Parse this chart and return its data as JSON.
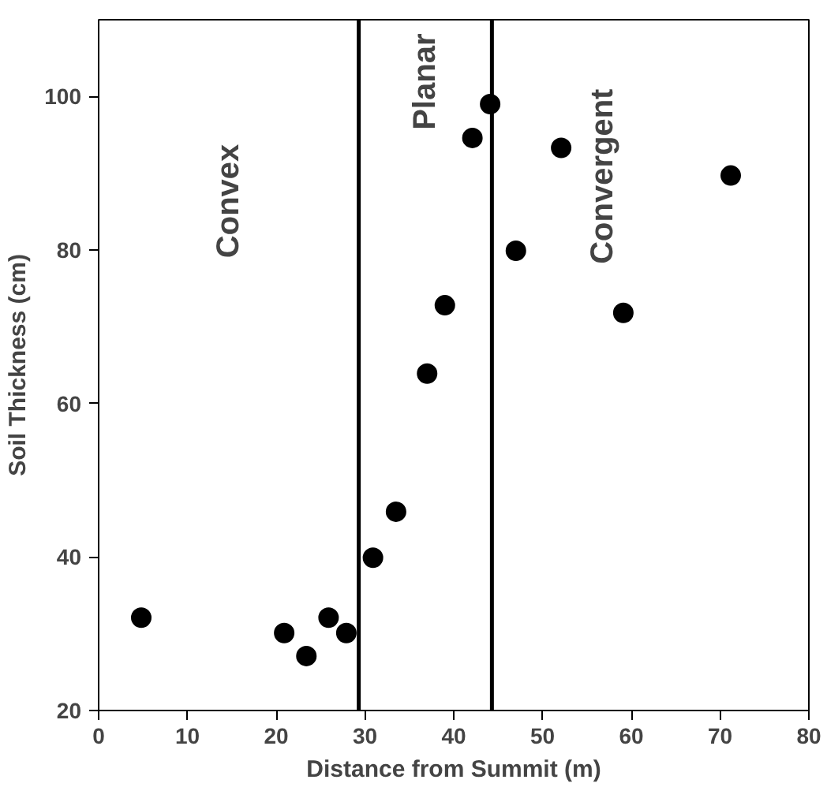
{
  "chart_data": {
    "type": "scatter",
    "xlabel": "Distance from Summit (m)",
    "ylabel": "Soil Thickness (cm)",
    "x": [
      4.8,
      20.9,
      23.4,
      25.9,
      27.9,
      30.9,
      33.5,
      37.0,
      39.0,
      42.1,
      44.1,
      47.0,
      52.1,
      59.1,
      71.2
    ],
    "series": [
      {
        "color": "#000000",
        "values": [
          32.1,
          30.1,
          27.1,
          32.1,
          30.1,
          39.9,
          45.9,
          63.9,
          72.8,
          94.6,
          99,
          79.9,
          93.3,
          71.8,
          89.7
        ]
      }
    ],
    "xlim": [
      0,
      80
    ],
    "ylim": [
      20,
      110
    ],
    "xticks": [
      0,
      10,
      20,
      30,
      40,
      50,
      60,
      70,
      80
    ],
    "yticks": [
      20,
      40,
      60,
      80,
      100
    ],
    "ref_lines": [
      {
        "axis": "x",
        "value": 29.3,
        "color": "#000000"
      },
      {
        "axis": "x",
        "value": 44.3,
        "color": "#000000"
      }
    ],
    "annotations": [
      "Convex",
      "Planar",
      "Convergent"
    ],
    "marker": "circle",
    "grid": false
  }
}
